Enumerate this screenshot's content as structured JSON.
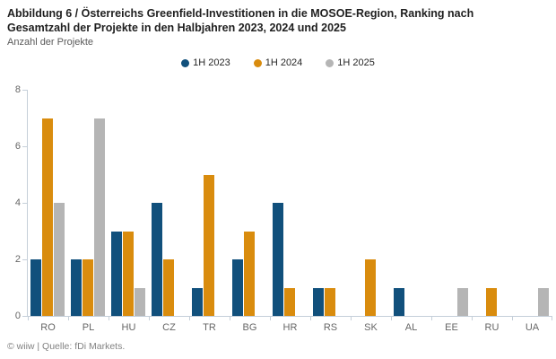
{
  "header": {
    "title": "Abbildung 6 / Österreichs Greenfield-Investitionen in die MOSOE-Region, Ranking nach Gesamtzahl der Projekte in den Halbjahren 2023, 2024 und 2025",
    "subtitle": "Anzahl der Projekte"
  },
  "chart_data": {
    "type": "bar",
    "title": "Abbildung 6 / Österreichs Greenfield-Investitionen in die MOSOE-Region, Ranking nach Gesamtzahl der Projekte in den Halbjahren 2023, 2024 und 2025",
    "ylabel": "Anzahl der Projekte",
    "xlabel": "",
    "categories": [
      "RO",
      "PL",
      "HU",
      "CZ",
      "TR",
      "BG",
      "HR",
      "RS",
      "SK",
      "AL",
      "EE",
      "RU",
      "UA"
    ],
    "series": [
      {
        "name": "1H 2023",
        "color": "#11507c",
        "values": [
          2,
          2,
          3,
          4,
          1,
          2,
          4,
          1,
          0,
          1,
          0,
          0,
          0
        ]
      },
      {
        "name": "1H 2024",
        "color": "#d98c0e",
        "values": [
          7,
          2,
          3,
          2,
          5,
          3,
          1,
          1,
          2,
          0,
          0,
          1,
          0
        ]
      },
      {
        "name": "1H 2025",
        "color": "#b5b5b5",
        "values": [
          4,
          7,
          1,
          0,
          0,
          0,
          0,
          0,
          0,
          0,
          1,
          0,
          1
        ]
      }
    ],
    "ylim": [
      0,
      8
    ],
    "yticks": [
      0,
      2,
      4,
      6,
      8
    ],
    "grid": false,
    "legend_position": "top-center"
  },
  "footer": {
    "text": "© wiiw | Quelle: fDi Markets."
  },
  "colors": {
    "axis": "#c5cfd9",
    "title_text": "#1f1f1f",
    "subtitle_text": "#595959",
    "tick_text": "#666666",
    "footer_text": "#828282"
  }
}
